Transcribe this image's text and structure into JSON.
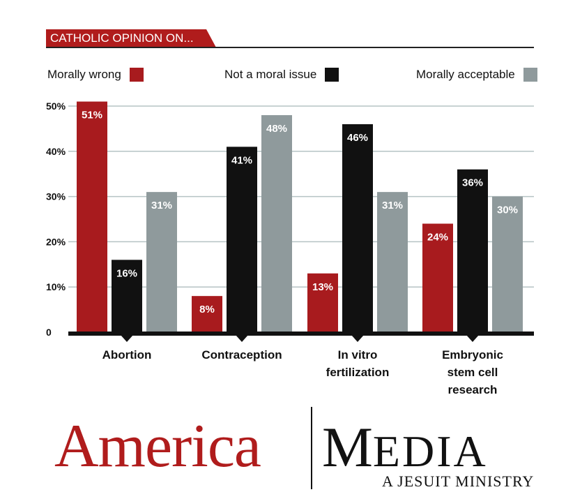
{
  "header": {
    "title": "CATHOLIC OPINION ON..."
  },
  "colors": {
    "morally_wrong": "#a81b1e",
    "not_moral_issue": "#111111",
    "morally_acceptable": "#8f9a9c",
    "gridline": "#b5c3c4"
  },
  "chart_data": {
    "type": "bar",
    "categories": [
      "Abortion",
      "Contraception",
      "In vitro\nfertilization",
      "Embryonic\nstem cell\nresearch"
    ],
    "series": [
      {
        "name": "Morally wrong",
        "values": [
          51,
          8,
          13,
          24
        ],
        "labels": [
          "51%",
          "8%",
          "13%",
          "24%"
        ]
      },
      {
        "name": "Not a moral issue",
        "values": [
          16,
          41,
          46,
          36
        ],
        "labels": [
          "16%",
          "41%",
          "46%",
          "36%"
        ]
      },
      {
        "name": "Morally acceptable",
        "values": [
          31,
          48,
          31,
          30
        ],
        "labels": [
          "31%",
          "48%",
          "31%",
          "30%"
        ]
      }
    ],
    "yticks": [
      "0",
      "10%",
      "20%",
      "30%",
      "40%",
      "50%"
    ],
    "ylim": [
      0,
      50
    ],
    "grid": true,
    "legend_position": "top"
  },
  "logo": {
    "left_word": "America",
    "right_initial": "M",
    "right_rest": "EDIA",
    "tagline": "A JESUIT MINISTRY"
  }
}
